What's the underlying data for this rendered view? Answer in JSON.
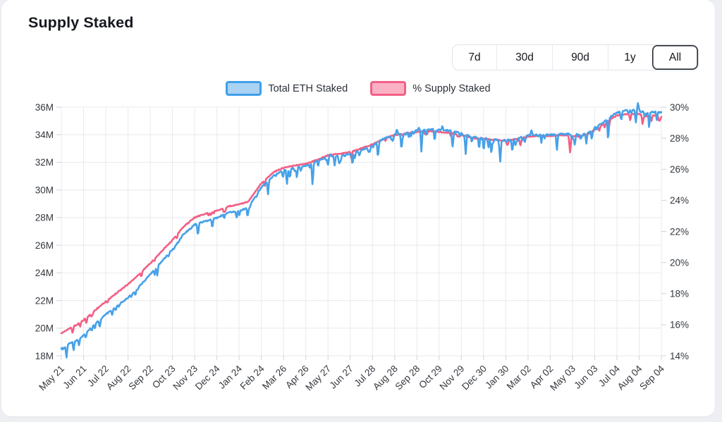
{
  "page": {
    "background": "#edeff2",
    "card_background": "#ffffff"
  },
  "header": {
    "title": "Supply Staked",
    "range_buttons": [
      {
        "label": "7d",
        "selected": false
      },
      {
        "label": "30d",
        "selected": false
      },
      {
        "label": "90d",
        "selected": false
      },
      {
        "label": "1y",
        "selected": false
      },
      {
        "label": "All",
        "selected": true
      }
    ]
  },
  "legend": [
    {
      "label": "Total ETH Staked",
      "fill": "#a9d2f3",
      "border": "#3f9fe8"
    },
    {
      "label": "% Supply Staked",
      "fill": "#f9b1c3",
      "border": "#f35f85"
    }
  ],
  "chart_data": {
    "type": "line",
    "title": "Supply Staked",
    "grid": true,
    "legend_position": "top-center",
    "x_unit": "month tick index (one tick per ~31.5 days, May 21 2023 to Sep 04 2025)",
    "x_tick_labels": [
      "May 21",
      "Jun 21",
      "Jul 22",
      "Aug 22",
      "Sep 22",
      "Oct 23",
      "Nov 23",
      "Dec 24",
      "Jan 24",
      "Feb 24",
      "Mar 26",
      "Apr 26",
      "May 27",
      "Jun 27",
      "Jul 28",
      "Aug 28",
      "Sep 28",
      "Oct 29",
      "Nov 29",
      "Dec 30",
      "Jan 30",
      "Mar 02",
      "Apr 02",
      "May 03",
      "Jun 03",
      "Jul 04",
      "Aug 04",
      "Sep 04"
    ],
    "left_axis": {
      "title": "Total ETH Staked (millions)",
      "min": 18,
      "max": 36,
      "tick_step": 2,
      "tick_labels": [
        "36M",
        "34M",
        "32M",
        "30M",
        "28M",
        "26M",
        "24M",
        "22M",
        "20M",
        "18M"
      ]
    },
    "right_axis": {
      "title": "% of supply staked",
      "min": 14,
      "max": 30,
      "tick_step": 2,
      "tick_labels": [
        "30%",
        "28%",
        "26%",
        "24%",
        "22%",
        "20%",
        "18%",
        "16%",
        "14%"
      ]
    },
    "series": [
      {
        "name": "Total ETH Staked",
        "axis": "left",
        "unit": "million ETH",
        "color": "#47a1e8",
        "width": 2.6,
        "points": [
          [
            0,
            18.55
          ],
          [
            0.35,
            18.9
          ],
          [
            0.7,
            19.1
          ],
          [
            1,
            19.5
          ],
          [
            1.5,
            20.3
          ],
          [
            2,
            21.0
          ],
          [
            2.5,
            21.6
          ],
          [
            3,
            22.2
          ],
          [
            3.5,
            23.0
          ],
          [
            4,
            23.9
          ],
          [
            4.5,
            24.8
          ],
          [
            5,
            25.7
          ],
          [
            5.5,
            26.8
          ],
          [
            6,
            27.5
          ],
          [
            6.4,
            27.7
          ],
          [
            7,
            28.0
          ],
          [
            7.5,
            28.35
          ],
          [
            8,
            28.5
          ],
          [
            8.4,
            28.7
          ],
          [
            9,
            30.2
          ],
          [
            9.6,
            31.1
          ],
          [
            10,
            31.4
          ],
          [
            10.5,
            31.6
          ],
          [
            11,
            31.75
          ],
          [
            11.5,
            32.1
          ],
          [
            12,
            32.4
          ],
          [
            12.5,
            32.5
          ],
          [
            13,
            32.6
          ],
          [
            13.5,
            32.9
          ],
          [
            14,
            33.2
          ],
          [
            14.5,
            33.7
          ],
          [
            15,
            34.0
          ],
          [
            15.5,
            34.15
          ],
          [
            16,
            34.3
          ],
          [
            16.5,
            34.4
          ],
          [
            17,
            34.35
          ],
          [
            17.5,
            34.3
          ],
          [
            18,
            34.1
          ],
          [
            18.5,
            33.85
          ],
          [
            19,
            33.75
          ],
          [
            19.5,
            33.65
          ],
          [
            20,
            33.6
          ],
          [
            20.5,
            33.75
          ],
          [
            21,
            33.95
          ],
          [
            21.5,
            34.0
          ],
          [
            22,
            34.0
          ],
          [
            22.5,
            34.05
          ],
          [
            23,
            34.05
          ],
          [
            23.3,
            34.0
          ],
          [
            23.7,
            34.15
          ],
          [
            24,
            34.5
          ],
          [
            24.4,
            34.9
          ],
          [
            24.8,
            35.4
          ],
          [
            25,
            35.6
          ],
          [
            25.4,
            35.75
          ],
          [
            26,
            35.8
          ],
          [
            26.3,
            35.6
          ],
          [
            26.6,
            35.65
          ],
          [
            27,
            35.6
          ]
        ],
        "spikes": [
          [
            0.55,
            -0.65
          ],
          [
            0.8,
            -0.5
          ],
          [
            1.1,
            -0.45
          ],
          [
            6.15,
            -0.8
          ],
          [
            9.3,
            -0.9
          ],
          [
            10.15,
            -1.1
          ],
          [
            10.6,
            -0.8
          ],
          [
            11.3,
            -1.3
          ],
          [
            12.3,
            -0.7
          ],
          [
            13.1,
            -0.9
          ],
          [
            14.25,
            -1.2
          ],
          [
            15.3,
            -0.8
          ],
          [
            16.2,
            -1.4
          ],
          [
            16.8,
            -0.9
          ],
          [
            17.6,
            -1.0
          ],
          [
            18.2,
            -1.5
          ],
          [
            18.8,
            -0.9
          ],
          [
            19.35,
            -1.1
          ],
          [
            19.75,
            -1.6
          ],
          [
            20.3,
            -0.8
          ],
          [
            21.6,
            -0.6
          ],
          [
            22.3,
            -0.9
          ],
          [
            23.1,
            -0.7
          ],
          [
            24.6,
            -1.2
          ],
          [
            25.2,
            -0.6
          ],
          [
            25.85,
            -1.0
          ],
          [
            26.45,
            -1.2
          ],
          [
            26.8,
            -0.6
          ],
          [
            12.1,
            0.3
          ],
          [
            15.1,
            0.4
          ],
          [
            16.1,
            0.35
          ],
          [
            17.15,
            0.3
          ],
          [
            21.15,
            0.4
          ],
          [
            25.95,
            0.55
          ]
        ],
        "noise": {
          "seed": 11,
          "jitter": 0.045,
          "spike_count": 120,
          "spike_max": 0.75,
          "density": [
            [
              0,
              1.8,
              0.9
            ],
            [
              1.8,
              6,
              0.35
            ],
            [
              6,
              8.5,
              0.55
            ],
            [
              8.5,
              14,
              0.8
            ],
            [
              14,
              17,
              0.9
            ],
            [
              17,
              24,
              1.0
            ],
            [
              24,
              27.01,
              0.95
            ]
          ]
        }
      },
      {
        "name": "% Supply Staked",
        "axis": "right",
        "unit": "%",
        "color": "#f35f85",
        "width": 2.6,
        "points": [
          [
            0,
            15.45
          ],
          [
            0.35,
            15.75
          ],
          [
            0.7,
            16.0
          ],
          [
            1,
            16.3
          ],
          [
            1.5,
            16.9
          ],
          [
            2,
            17.5
          ],
          [
            2.5,
            18.05
          ],
          [
            3,
            18.6
          ],
          [
            3.5,
            19.25
          ],
          [
            4,
            19.95
          ],
          [
            4.5,
            20.7
          ],
          [
            5,
            21.45
          ],
          [
            5.5,
            22.3
          ],
          [
            6,
            22.9
          ],
          [
            6.4,
            23.1
          ],
          [
            7,
            23.35
          ],
          [
            7.5,
            23.6
          ],
          [
            8,
            23.75
          ],
          [
            8.4,
            23.9
          ],
          [
            9,
            25.1
          ],
          [
            9.6,
            25.85
          ],
          [
            10,
            26.1
          ],
          [
            10.5,
            26.25
          ],
          [
            11,
            26.35
          ],
          [
            11.5,
            26.6
          ],
          [
            12,
            26.9
          ],
          [
            12.5,
            27.0
          ],
          [
            13,
            27.1
          ],
          [
            13.5,
            27.35
          ],
          [
            14,
            27.6
          ],
          [
            14.5,
            27.95
          ],
          [
            15,
            28.2
          ],
          [
            15.5,
            28.3
          ],
          [
            16,
            28.4
          ],
          [
            16.5,
            28.45
          ],
          [
            17,
            28.4
          ],
          [
            17.5,
            28.35
          ],
          [
            18,
            28.2
          ],
          [
            18.5,
            28.0
          ],
          [
            19,
            27.95
          ],
          [
            19.5,
            27.9
          ],
          [
            20,
            27.85
          ],
          [
            20.5,
            27.95
          ],
          [
            21,
            28.1
          ],
          [
            21.5,
            28.15
          ],
          [
            22,
            28.15
          ],
          [
            22.5,
            28.2
          ],
          [
            23,
            28.15
          ],
          [
            23.3,
            28.1
          ],
          [
            23.7,
            28.25
          ],
          [
            24,
            28.55
          ],
          [
            24.4,
            28.9
          ],
          [
            24.8,
            29.3
          ],
          [
            25,
            29.45
          ],
          [
            25.4,
            29.55
          ],
          [
            26,
            29.55
          ],
          [
            26.3,
            29.4
          ],
          [
            26.6,
            29.45
          ],
          [
            27,
            29.4
          ]
        ],
        "spikes": [
          [
            0.5,
            -0.3
          ],
          [
            0.85,
            -0.28
          ],
          [
            3.6,
            -0.35
          ],
          [
            5.2,
            -0.25
          ],
          [
            9.15,
            -0.4
          ],
          [
            13.05,
            -0.5
          ],
          [
            20.65,
            -0.55
          ],
          [
            22.9,
            -1.1
          ],
          [
            24.65,
            -0.35
          ],
          [
            25.6,
            -0.45
          ],
          [
            26.15,
            -0.55
          ],
          [
            26.55,
            -0.4
          ],
          [
            26.9,
            -0.35
          ]
        ],
        "noise": {
          "seed": 5,
          "jitter": 0.03,
          "spike_count": 30,
          "spike_max": 0.28,
          "density": [
            [
              0,
              2,
              0.8
            ],
            [
              2,
              9,
              0.3
            ],
            [
              9,
              14,
              0.5
            ],
            [
              14,
              20,
              0.35
            ],
            [
              20,
              27.01,
              0.7
            ]
          ]
        }
      }
    ]
  }
}
